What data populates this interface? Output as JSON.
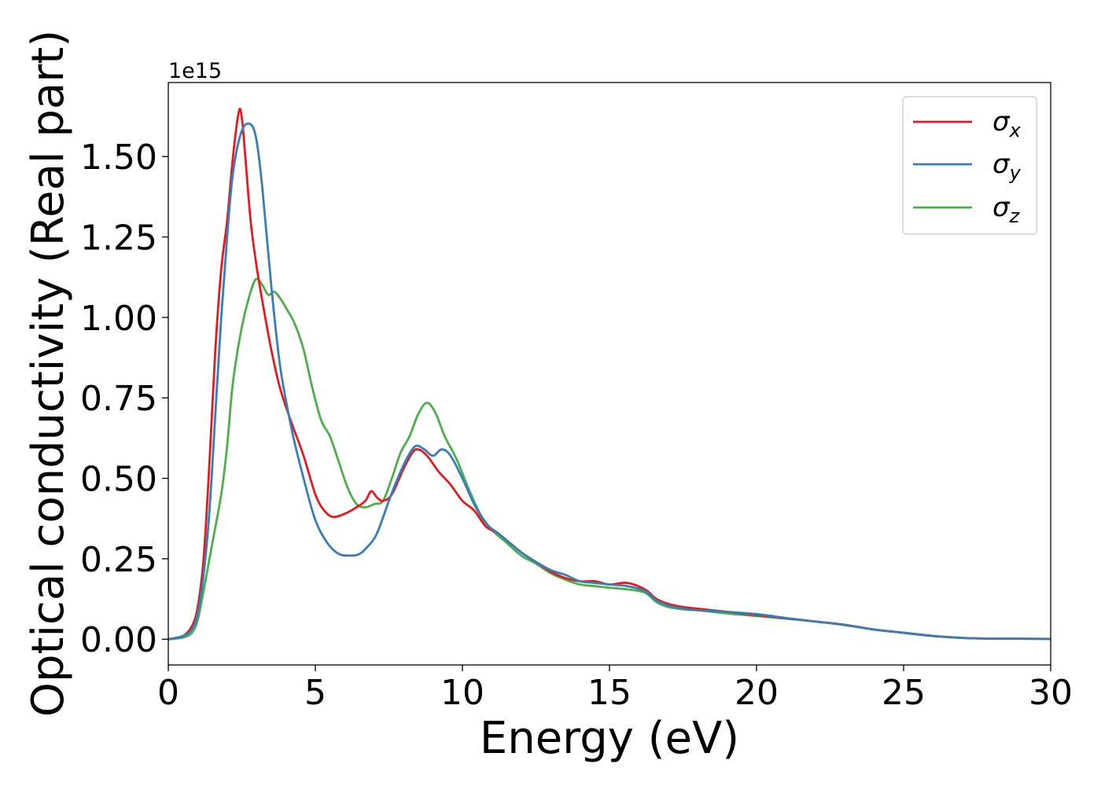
{
  "chart_data": {
    "type": "line",
    "title": "",
    "xlabel": "Energy (eV)",
    "ylabel": "Optical conductivity (Real part)",
    "y_offset_label": "1e15",
    "xlim": [
      0,
      30
    ],
    "ylim": [
      -0.08,
      1.73
    ],
    "xticks": [
      0,
      5,
      10,
      15,
      20,
      25,
      30
    ],
    "xtick_labels": [
      "0",
      "5",
      "10",
      "15",
      "20",
      "25",
      "30"
    ],
    "yticks": [
      0.0,
      0.25,
      0.5,
      0.75,
      1.0,
      1.25,
      1.5
    ],
    "ytick_labels": [
      "0.00",
      "0.25",
      "0.50",
      "0.75",
      "1.00",
      "1.25",
      "1.50"
    ],
    "grid": false,
    "legend": "top-right",
    "series": [
      {
        "legend_base": "σ",
        "legend_sub": "x",
        "color": "#e41a1c",
        "points": [
          [
            0,
            0.0
          ],
          [
            0.5,
            0.01
          ],
          [
            0.8,
            0.04
          ],
          [
            1.0,
            0.1
          ],
          [
            1.2,
            0.25
          ],
          [
            1.4,
            0.55
          ],
          [
            1.6,
            0.9
          ],
          [
            1.8,
            1.15
          ],
          [
            2.0,
            1.3
          ],
          [
            2.2,
            1.5
          ],
          [
            2.4,
            1.64
          ],
          [
            2.5,
            1.62
          ],
          [
            2.6,
            1.52
          ],
          [
            2.8,
            1.3
          ],
          [
            3.0,
            1.16
          ],
          [
            3.2,
            1.05
          ],
          [
            3.5,
            0.9
          ],
          [
            3.8,
            0.78
          ],
          [
            4.2,
            0.67
          ],
          [
            4.6,
            0.57
          ],
          [
            5.0,
            0.45
          ],
          [
            5.3,
            0.4
          ],
          [
            5.6,
            0.38
          ],
          [
            6.0,
            0.39
          ],
          [
            6.4,
            0.41
          ],
          [
            6.7,
            0.43
          ],
          [
            6.9,
            0.46
          ],
          [
            7.1,
            0.44
          ],
          [
            7.3,
            0.43
          ],
          [
            7.6,
            0.45
          ],
          [
            8.0,
            0.53
          ],
          [
            8.3,
            0.58
          ],
          [
            8.5,
            0.59
          ],
          [
            8.8,
            0.57
          ],
          [
            9.2,
            0.52
          ],
          [
            9.6,
            0.48
          ],
          [
            10.0,
            0.43
          ],
          [
            10.4,
            0.4
          ],
          [
            10.8,
            0.35
          ],
          [
            11.2,
            0.33
          ],
          [
            11.6,
            0.3
          ],
          [
            12.0,
            0.27
          ],
          [
            12.5,
            0.24
          ],
          [
            13.0,
            0.21
          ],
          [
            13.5,
            0.19
          ],
          [
            14.0,
            0.18
          ],
          [
            14.5,
            0.18
          ],
          [
            15.0,
            0.17
          ],
          [
            15.6,
            0.175
          ],
          [
            16.2,
            0.155
          ],
          [
            16.6,
            0.125
          ],
          [
            17.0,
            0.11
          ],
          [
            17.5,
            0.1
          ],
          [
            18.0,
            0.095
          ],
          [
            19.0,
            0.085
          ],
          [
            20.0,
            0.075
          ],
          [
            21.0,
            0.065
          ],
          [
            22.0,
            0.055
          ],
          [
            23.0,
            0.045
          ],
          [
            24.0,
            0.03
          ],
          [
            25.0,
            0.02
          ],
          [
            26.0,
            0.01
          ],
          [
            27.0,
            0.004
          ],
          [
            28.0,
            0.002
          ],
          [
            30.0,
            0.001
          ]
        ]
      },
      {
        "legend_base": "σ",
        "legend_sub": "y",
        "color": "#377eb8",
        "points": [
          [
            0,
            0.0
          ],
          [
            0.5,
            0.01
          ],
          [
            0.8,
            0.03
          ],
          [
            1.0,
            0.08
          ],
          [
            1.2,
            0.2
          ],
          [
            1.4,
            0.4
          ],
          [
            1.6,
            0.7
          ],
          [
            1.8,
            1.0
          ],
          [
            2.0,
            1.25
          ],
          [
            2.2,
            1.45
          ],
          [
            2.5,
            1.58
          ],
          [
            2.8,
            1.6
          ],
          [
            3.0,
            1.55
          ],
          [
            3.2,
            1.4
          ],
          [
            3.5,
            1.1
          ],
          [
            3.8,
            0.85
          ],
          [
            4.2,
            0.65
          ],
          [
            4.6,
            0.5
          ],
          [
            5.0,
            0.37
          ],
          [
            5.4,
            0.3
          ],
          [
            5.8,
            0.265
          ],
          [
            6.2,
            0.26
          ],
          [
            6.5,
            0.265
          ],
          [
            6.8,
            0.29
          ],
          [
            7.1,
            0.33
          ],
          [
            7.5,
            0.43
          ],
          [
            7.8,
            0.5
          ],
          [
            8.1,
            0.56
          ],
          [
            8.4,
            0.6
          ],
          [
            8.7,
            0.59
          ],
          [
            9.0,
            0.57
          ],
          [
            9.3,
            0.59
          ],
          [
            9.6,
            0.57
          ],
          [
            10.0,
            0.5
          ],
          [
            10.4,
            0.42
          ],
          [
            10.8,
            0.36
          ],
          [
            11.2,
            0.33
          ],
          [
            11.6,
            0.3
          ],
          [
            12.0,
            0.27
          ],
          [
            12.5,
            0.24
          ],
          [
            13.0,
            0.215
          ],
          [
            13.5,
            0.2
          ],
          [
            14.0,
            0.18
          ],
          [
            14.5,
            0.175
          ],
          [
            15.0,
            0.17
          ],
          [
            15.6,
            0.165
          ],
          [
            16.2,
            0.15
          ],
          [
            16.6,
            0.12
          ],
          [
            17.0,
            0.105
          ],
          [
            17.5,
            0.095
          ],
          [
            18.0,
            0.09
          ],
          [
            19.0,
            0.085
          ],
          [
            20.0,
            0.078
          ],
          [
            21.0,
            0.066
          ],
          [
            22.0,
            0.055
          ],
          [
            23.0,
            0.044
          ],
          [
            24.0,
            0.03
          ],
          [
            25.0,
            0.02
          ],
          [
            26.0,
            0.01
          ],
          [
            27.0,
            0.004
          ],
          [
            28.0,
            0.002
          ],
          [
            30.0,
            0.001
          ]
        ]
      },
      {
        "legend_base": "σ",
        "legend_sub": "z",
        "color": "#4daf4a",
        "points": [
          [
            0,
            0.0
          ],
          [
            0.5,
            0.005
          ],
          [
            0.8,
            0.02
          ],
          [
            1.0,
            0.06
          ],
          [
            1.2,
            0.15
          ],
          [
            1.5,
            0.3
          ],
          [
            1.8,
            0.45
          ],
          [
            2.0,
            0.6
          ],
          [
            2.2,
            0.8
          ],
          [
            2.5,
            0.97
          ],
          [
            2.8,
            1.08
          ],
          [
            3.0,
            1.12
          ],
          [
            3.2,
            1.1
          ],
          [
            3.4,
            1.07
          ],
          [
            3.6,
            1.08
          ],
          [
            3.8,
            1.06
          ],
          [
            4.0,
            1.03
          ],
          [
            4.3,
            0.98
          ],
          [
            4.6,
            0.9
          ],
          [
            4.9,
            0.78
          ],
          [
            5.2,
            0.68
          ],
          [
            5.5,
            0.63
          ],
          [
            5.8,
            0.55
          ],
          [
            6.1,
            0.47
          ],
          [
            6.4,
            0.42
          ],
          [
            6.7,
            0.41
          ],
          [
            7.0,
            0.42
          ],
          [
            7.3,
            0.43
          ],
          [
            7.6,
            0.5
          ],
          [
            7.9,
            0.58
          ],
          [
            8.2,
            0.63
          ],
          [
            8.5,
            0.7
          ],
          [
            8.8,
            0.735
          ],
          [
            9.1,
            0.7
          ],
          [
            9.4,
            0.63
          ],
          [
            9.8,
            0.56
          ],
          [
            10.2,
            0.47
          ],
          [
            10.6,
            0.39
          ],
          [
            11.0,
            0.34
          ],
          [
            11.5,
            0.3
          ],
          [
            12.0,
            0.26
          ],
          [
            12.5,
            0.235
          ],
          [
            13.0,
            0.205
          ],
          [
            13.5,
            0.185
          ],
          [
            14.0,
            0.17
          ],
          [
            14.5,
            0.165
          ],
          [
            15.0,
            0.16
          ],
          [
            15.6,
            0.155
          ],
          [
            16.2,
            0.145
          ],
          [
            16.6,
            0.115
          ],
          [
            17.0,
            0.1
          ],
          [
            17.5,
            0.093
          ],
          [
            18.0,
            0.09
          ],
          [
            19.0,
            0.08
          ],
          [
            20.0,
            0.072
          ],
          [
            21.0,
            0.064
          ],
          [
            22.0,
            0.055
          ],
          [
            23.0,
            0.044
          ],
          [
            24.0,
            0.03
          ],
          [
            25.0,
            0.02
          ],
          [
            26.0,
            0.01
          ],
          [
            27.0,
            0.004
          ],
          [
            28.0,
            0.002
          ],
          [
            30.0,
            0.001
          ]
        ]
      }
    ]
  }
}
